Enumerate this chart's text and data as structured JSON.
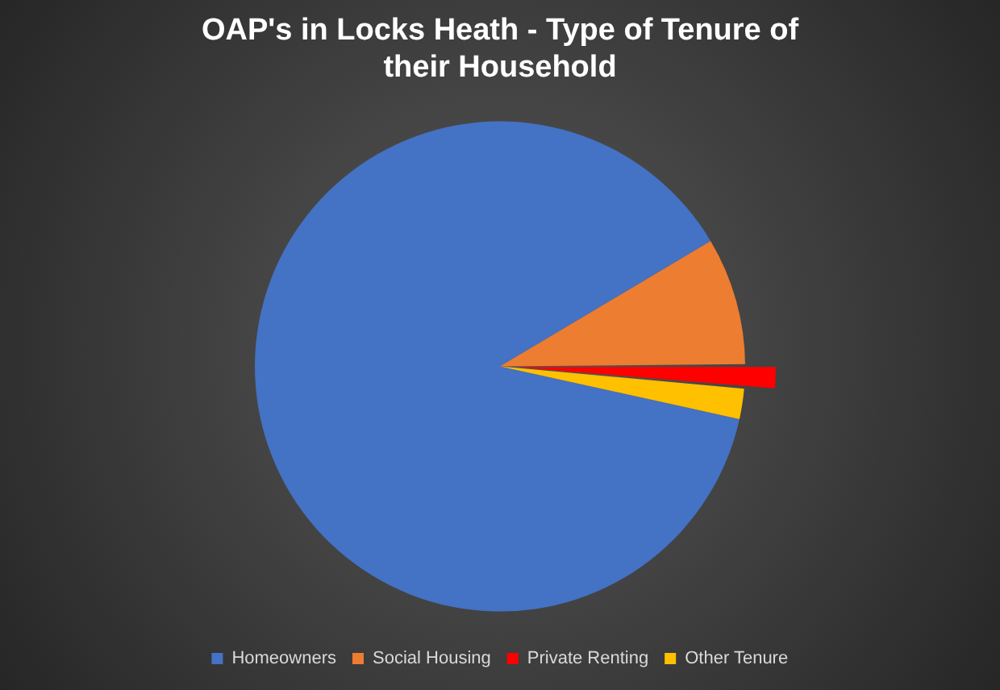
{
  "chart_data": {
    "type": "pie",
    "title": "OAP's in Locks Heath - Type of Tenure of their Household",
    "categories": [
      "Homeowners",
      "Social Housing",
      "Private Renting",
      "Other Tenure"
    ],
    "values": [
      88,
      8.4,
      1.6,
      2
    ],
    "colors": [
      "#4472c4",
      "#ed7d31",
      "#ff0000",
      "#ffc000"
    ],
    "legend": "bottom"
  }
}
